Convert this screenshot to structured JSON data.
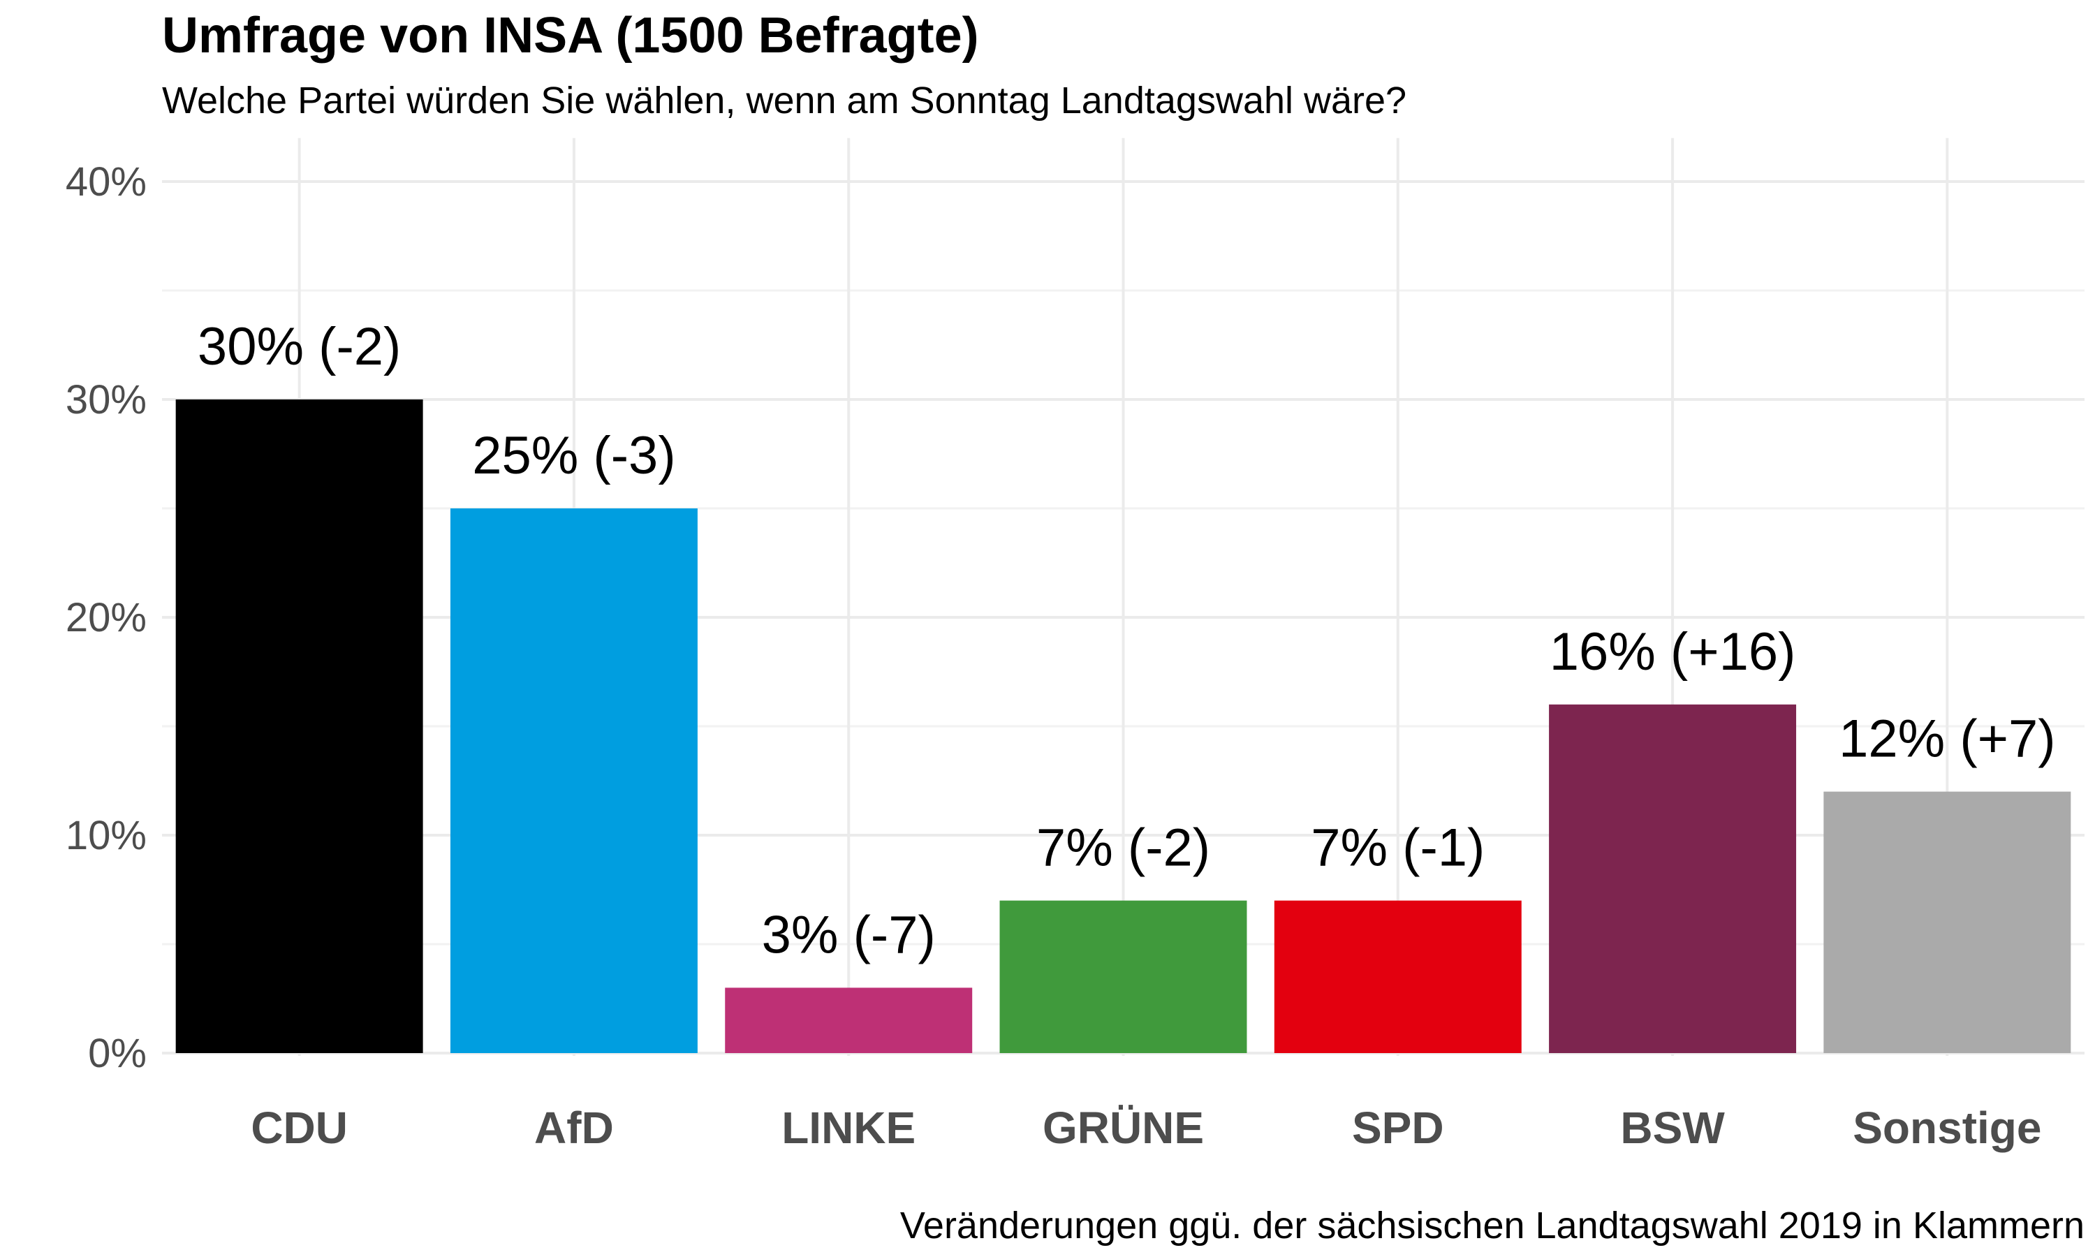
{
  "chart_data": {
    "type": "bar",
    "title": "Umfrage von INSA (1500 Befragte)",
    "subtitle": "Welche Partei würden Sie wählen, wenn am Sonntag Landtagswahl wäre?",
    "caption": "Veränderungen ggü. der sächsischen Landtagswahl 2019 in Klammern",
    "xlabel": "",
    "ylabel": "",
    "ylim": [
      0,
      42
    ],
    "y_ticks": [
      0,
      10,
      20,
      30,
      40
    ],
    "y_tick_labels": [
      "0%",
      "10%",
      "20%",
      "30%",
      "40%"
    ],
    "grid": true,
    "categories": [
      "CDU",
      "AfD",
      "LINKE",
      "GRÜNE",
      "SPD",
      "BSW",
      "Sonstige"
    ],
    "values": [
      30,
      25,
      3,
      7,
      7,
      16,
      12
    ],
    "data_labels": [
      "30% (-2)",
      "25% (-3)",
      "3% (-7)",
      "7% (-2)",
      "7% (-1)",
      "16% (+16)",
      "12% (+7)"
    ],
    "colors": [
      "#000000",
      "#009ee0",
      "#be3075",
      "#409a3c",
      "#e3000f",
      "#7d254f",
      "#aaaaaa"
    ]
  }
}
